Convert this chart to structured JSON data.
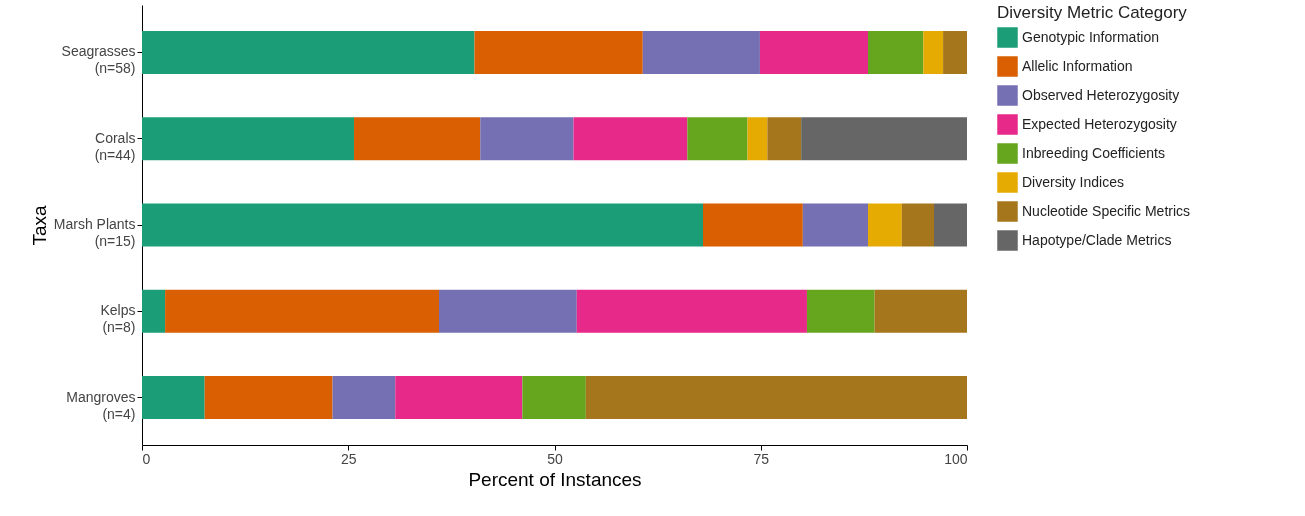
{
  "chart_data": {
    "type": "bar",
    "orientation": "horizontal",
    "stacked": true,
    "xlabel": "Percent of Instances",
    "ylabel": "Taxa",
    "legend_title": "Diversity Metric Category",
    "legend": "right",
    "grid": false,
    "categories": [
      "Seagrasses\n(n=58)",
      "Corals\n(n=44)",
      "Marsh Plants\n(n=15)",
      "Kelps\n(n=8)",
      "Mangroves\n(n=4)"
    ],
    "xlim": [
      0,
      100
    ],
    "xticks": [
      0,
      25,
      50,
      75,
      100
    ],
    "series": [
      {
        "name": "Genotypic Information",
        "color": "#1b9e77",
        "values": [
          40.3,
          25.7,
          68.0,
          2.8,
          7.6
        ]
      },
      {
        "name": "Allelic Information",
        "color": "#d95f02",
        "values": [
          20.4,
          15.3,
          12.1,
          33.2,
          15.5
        ]
      },
      {
        "name": "Observed Heterozygosity",
        "color": "#7570b3",
        "values": [
          14.2,
          11.3,
          7.9,
          16.7,
          7.6
        ]
      },
      {
        "name": "Expected Heterozygosity",
        "color": "#e7298a",
        "values": [
          13.1,
          13.8,
          null,
          27.9,
          15.4
        ]
      },
      {
        "name": "Inbreeding Coefficients",
        "color": "#66a61e",
        "values": [
          6.7,
          7.3,
          null,
          8.2,
          7.7
        ]
      },
      {
        "name": "Diversity Indices",
        "color": "#e6ab02",
        "values": [
          2.4,
          2.4,
          4.1,
          null,
          null
        ]
      },
      {
        "name": "Nucleotide Specific Metrics",
        "color": "#a6761d",
        "values": [
          2.9,
          4.1,
          3.9,
          11.2,
          46.2
        ]
      },
      {
        "name": "Hapotype/Clade Metrics",
        "color": "#666666",
        "values": [
          null,
          20.1,
          4.0,
          null,
          null
        ]
      }
    ]
  }
}
